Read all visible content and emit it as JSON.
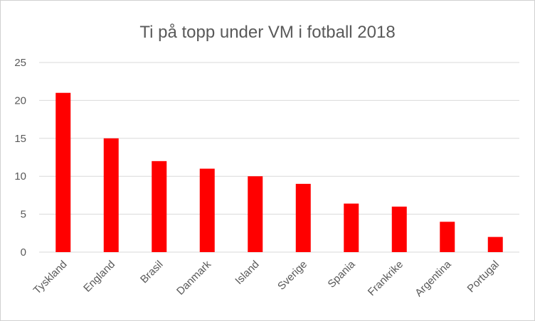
{
  "chart_data": {
    "type": "bar",
    "title": "Ti på topp under VM i fotball 2018",
    "xlabel": "",
    "ylabel": "",
    "categories": [
      "Tyskland",
      "England",
      "Brasil",
      "Danmark",
      "Island",
      "Sverige",
      "Spania",
      "Frankrike",
      "Argentina",
      "Portugal"
    ],
    "values": [
      21,
      15,
      12,
      11,
      10,
      9,
      6.4,
      6,
      4,
      2
    ],
    "ylim": [
      0,
      25
    ],
    "yticks": [
      "0",
      "5",
      "10",
      "15",
      "20",
      "25"
    ],
    "grid": true,
    "legend": "none",
    "bar_color": "#ff0000"
  }
}
